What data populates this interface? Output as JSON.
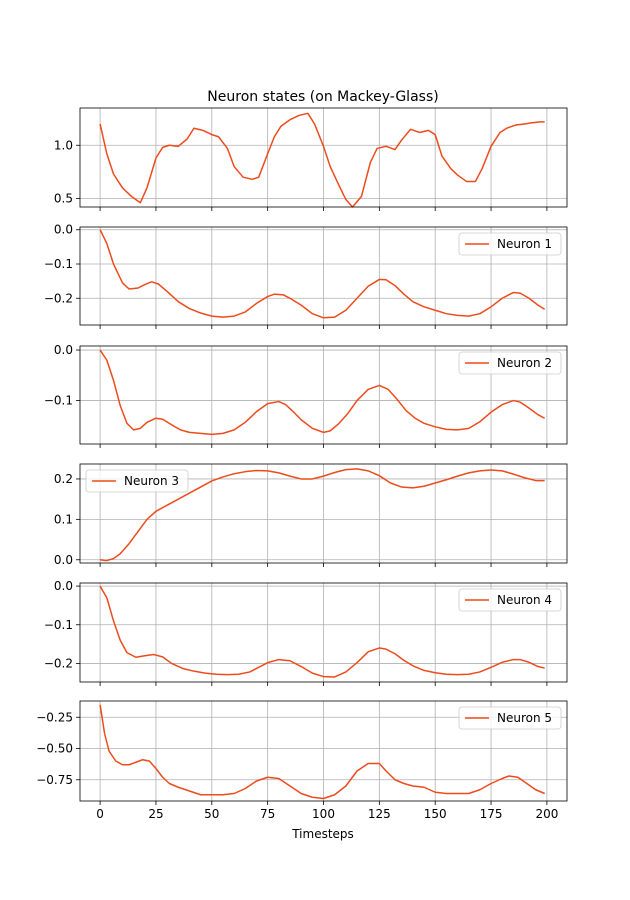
{
  "chart_data": {
    "type": "line",
    "title": "Neuron states (on Mackey-Glass)",
    "xlabel": "Timesteps",
    "xlim": [
      -9,
      209
    ],
    "xticks": [
      0,
      25,
      50,
      75,
      100,
      125,
      150,
      175,
      200
    ],
    "grid": true,
    "line_color": "#ee4b1c",
    "panels": [
      {
        "name": "",
        "legend": "",
        "legend_position": "none",
        "ylim": [
          0.42,
          1.35
        ],
        "yticks": [
          0.5,
          1.0
        ],
        "ytick_labels": [
          "0.5",
          "1.0"
        ],
        "x": [
          0,
          3,
          6,
          10,
          14,
          18,
          21,
          25,
          28,
          31,
          35,
          39,
          42,
          46,
          50,
          53,
          57,
          60,
          64,
          68,
          71,
          75,
          78,
          81,
          85,
          89,
          93,
          96,
          100,
          103,
          107,
          110,
          113,
          117,
          121,
          124,
          128,
          132,
          135,
          139,
          143,
          147,
          150,
          153,
          157,
          160,
          164,
          168,
          171,
          175,
          179,
          182,
          186,
          190,
          193,
          197,
          199
        ],
        "y": [
          1.2,
          0.92,
          0.73,
          0.6,
          0.52,
          0.46,
          0.6,
          0.88,
          0.98,
          1.0,
          0.99,
          1.06,
          1.16,
          1.14,
          1.1,
          1.08,
          0.97,
          0.8,
          0.7,
          0.68,
          0.7,
          0.92,
          1.08,
          1.18,
          1.24,
          1.28,
          1.3,
          1.2,
          0.99,
          0.8,
          0.62,
          0.49,
          0.42,
          0.52,
          0.84,
          0.97,
          0.99,
          0.96,
          1.05,
          1.15,
          1.12,
          1.14,
          1.1,
          0.9,
          0.78,
          0.72,
          0.66,
          0.66,
          0.78,
          0.99,
          1.12,
          1.16,
          1.19,
          1.2,
          1.21,
          1.22,
          1.22
        ]
      },
      {
        "name": "Neuron 1",
        "legend": "Neuron 1",
        "legend_position": "top-right",
        "ylim": [
          -0.278,
          0.008
        ],
        "yticks": [
          0.0,
          -0.1,
          -0.2
        ],
        "ytick_labels": [
          "0.0",
          "−0.1",
          "−0.2"
        ],
        "x": [
          0,
          3,
          6,
          10,
          13,
          17,
          20,
          23,
          26,
          30,
          35,
          40,
          45,
          50,
          55,
          60,
          65,
          70,
          75,
          78,
          82,
          85,
          90,
          95,
          100,
          105,
          110,
          115,
          120,
          125,
          128,
          132,
          136,
          140,
          145,
          150,
          155,
          160,
          165,
          170,
          175,
          180,
          185,
          188,
          192,
          196,
          199
        ],
        "y": [
          0.0,
          -0.04,
          -0.1,
          -0.155,
          -0.173,
          -0.17,
          -0.16,
          -0.152,
          -0.158,
          -0.18,
          -0.21,
          -0.23,
          -0.243,
          -0.252,
          -0.255,
          -0.252,
          -0.24,
          -0.215,
          -0.195,
          -0.188,
          -0.19,
          -0.2,
          -0.22,
          -0.245,
          -0.257,
          -0.255,
          -0.235,
          -0.2,
          -0.165,
          -0.145,
          -0.146,
          -0.163,
          -0.188,
          -0.21,
          -0.225,
          -0.235,
          -0.245,
          -0.25,
          -0.252,
          -0.245,
          -0.225,
          -0.2,
          -0.183,
          -0.185,
          -0.2,
          -0.22,
          -0.232
        ]
      },
      {
        "name": "Neuron 2",
        "legend": "Neuron 2",
        "legend_position": "top-right",
        "ylim": [
          -0.186,
          0.008
        ],
        "yticks": [
          0.0,
          -0.1
        ],
        "ytick_labels": [
          "0.0",
          "−0.1"
        ],
        "x": [
          0,
          3,
          6,
          9,
          12,
          15,
          18,
          21,
          25,
          28,
          32,
          36,
          40,
          45,
          50,
          55,
          60,
          65,
          70,
          75,
          80,
          83,
          86,
          90,
          95,
          100,
          103,
          107,
          111,
          115,
          120,
          125,
          129,
          133,
          137,
          141,
          145,
          150,
          155,
          160,
          165,
          170,
          175,
          180,
          185,
          188,
          192,
          196,
          199
        ],
        "y": [
          0.0,
          -0.02,
          -0.06,
          -0.11,
          -0.145,
          -0.158,
          -0.155,
          -0.143,
          -0.135,
          -0.137,
          -0.148,
          -0.158,
          -0.163,
          -0.165,
          -0.167,
          -0.165,
          -0.158,
          -0.143,
          -0.122,
          -0.106,
          -0.102,
          -0.108,
          -0.12,
          -0.138,
          -0.155,
          -0.163,
          -0.16,
          -0.145,
          -0.125,
          -0.1,
          -0.078,
          -0.07,
          -0.078,
          -0.098,
          -0.12,
          -0.135,
          -0.145,
          -0.152,
          -0.157,
          -0.158,
          -0.155,
          -0.142,
          -0.123,
          -0.108,
          -0.1,
          -0.103,
          -0.115,
          -0.128,
          -0.135
        ]
      },
      {
        "name": "Neuron 3",
        "legend": "Neuron 3",
        "legend_position": "top-left",
        "ylim": [
          -0.008,
          0.237
        ],
        "yticks": [
          0.0,
          0.1,
          0.2
        ],
        "ytick_labels": [
          "0.0",
          "0.1",
          "0.2"
        ],
        "x": [
          0,
          3,
          6,
          9,
          13,
          17,
          21,
          25,
          30,
          35,
          40,
          45,
          50,
          55,
          60,
          65,
          70,
          75,
          80,
          85,
          90,
          95,
          100,
          105,
          110,
          115,
          120,
          125,
          130,
          135,
          140,
          145,
          150,
          155,
          160,
          165,
          170,
          175,
          180,
          185,
          190,
          195,
          199
        ],
        "y": [
          0.0,
          -0.002,
          0.003,
          0.015,
          0.04,
          0.07,
          0.1,
          0.12,
          0.135,
          0.15,
          0.165,
          0.18,
          0.195,
          0.205,
          0.213,
          0.218,
          0.221,
          0.22,
          0.215,
          0.207,
          0.2,
          0.2,
          0.207,
          0.216,
          0.223,
          0.225,
          0.22,
          0.208,
          0.19,
          0.18,
          0.178,
          0.182,
          0.19,
          0.198,
          0.207,
          0.215,
          0.22,
          0.222,
          0.22,
          0.212,
          0.203,
          0.196,
          0.196
        ]
      },
      {
        "name": "Neuron 4",
        "legend": "Neuron 4",
        "legend_position": "top-right",
        "ylim": [
          -0.248,
          0.008
        ],
        "yticks": [
          0.0,
          -0.1,
          -0.2
        ],
        "ytick_labels": [
          "0.0",
          "−0.1",
          "−0.2"
        ],
        "x": [
          0,
          3,
          6,
          9,
          12,
          16,
          20,
          24,
          28,
          32,
          37,
          42,
          47,
          52,
          57,
          62,
          67,
          71,
          75,
          80,
          85,
          90,
          95,
          100,
          105,
          110,
          115,
          120,
          125,
          128,
          132,
          136,
          140,
          145,
          150,
          155,
          160,
          165,
          170,
          175,
          180,
          185,
          188,
          192,
          196,
          199
        ],
        "y": [
          0.0,
          -0.03,
          -0.09,
          -0.14,
          -0.172,
          -0.184,
          -0.18,
          -0.177,
          -0.183,
          -0.2,
          -0.213,
          -0.22,
          -0.225,
          -0.228,
          -0.229,
          -0.228,
          -0.222,
          -0.21,
          -0.198,
          -0.19,
          -0.193,
          -0.208,
          -0.225,
          -0.234,
          -0.235,
          -0.222,
          -0.198,
          -0.17,
          -0.16,
          -0.163,
          -0.175,
          -0.192,
          -0.206,
          -0.218,
          -0.224,
          -0.228,
          -0.229,
          -0.228,
          -0.222,
          -0.21,
          -0.197,
          -0.19,
          -0.19,
          -0.197,
          -0.208,
          -0.212
        ]
      },
      {
        "name": "Neuron 5",
        "legend": "Neuron 5",
        "legend_position": "top-right",
        "ylim": [
          -0.92,
          -0.12
        ],
        "yticks": [
          -0.25,
          -0.5,
          -0.75
        ],
        "ytick_labels": [
          "−0.25",
          "−0.50",
          "−0.75"
        ],
        "x": [
          0,
          2,
          4,
          7,
          10,
          13,
          16,
          19,
          22,
          25,
          28,
          31,
          35,
          40,
          45,
          50,
          55,
          60,
          65,
          70,
          75,
          80,
          85,
          90,
          95,
          100,
          105,
          110,
          115,
          120,
          125,
          128,
          132,
          136,
          140,
          145,
          150,
          155,
          160,
          165,
          170,
          175,
          180,
          183,
          187,
          191,
          195,
          199
        ],
        "y": [
          -0.15,
          -0.38,
          -0.52,
          -0.6,
          -0.63,
          -0.63,
          -0.61,
          -0.59,
          -0.6,
          -0.66,
          -0.73,
          -0.78,
          -0.81,
          -0.84,
          -0.87,
          -0.87,
          -0.87,
          -0.86,
          -0.82,
          -0.76,
          -0.73,
          -0.74,
          -0.8,
          -0.86,
          -0.89,
          -0.9,
          -0.87,
          -0.8,
          -0.68,
          -0.62,
          -0.62,
          -0.68,
          -0.75,
          -0.78,
          -0.8,
          -0.81,
          -0.85,
          -0.86,
          -0.86,
          -0.86,
          -0.83,
          -0.78,
          -0.74,
          -0.72,
          -0.73,
          -0.78,
          -0.83,
          -0.86
        ]
      }
    ]
  }
}
